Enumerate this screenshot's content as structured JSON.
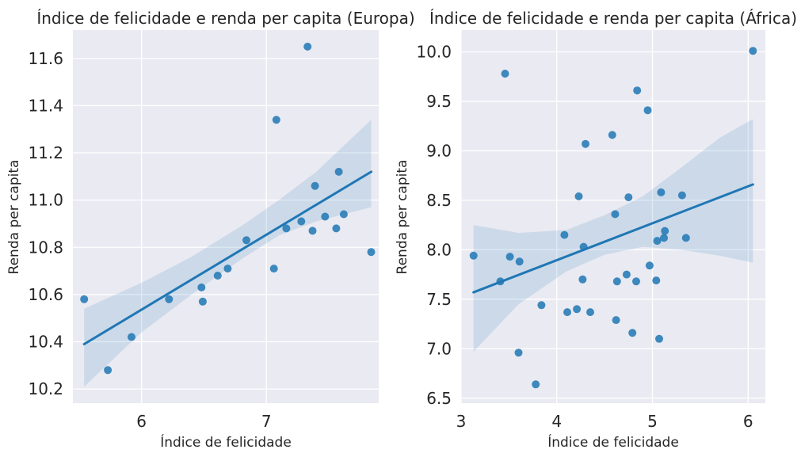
{
  "chart_data": [
    {
      "type": "scatter",
      "title": "Índice de felicidade e renda per capita (Europa)",
      "xlabel": "Índice de felicidade",
      "ylabel": "Renda per capita",
      "xlim": [
        5.45,
        7.9
      ],
      "ylim": [
        10.14,
        11.72
      ],
      "xticks": [
        6,
        7
      ],
      "yticks": [
        10.2,
        10.4,
        10.6,
        10.8,
        11.0,
        11.2,
        11.4,
        11.6
      ],
      "ytick_decimals": 1,
      "grid": true,
      "point_color": "#1f77b4",
      "line_color": "#1f77b4",
      "band_color": "#1f77b4",
      "points": [
        [
          5.54,
          10.58
        ],
        [
          5.73,
          10.28
        ],
        [
          5.92,
          10.42
        ],
        [
          6.22,
          10.58
        ],
        [
          6.48,
          10.63
        ],
        [
          6.49,
          10.57
        ],
        [
          6.61,
          10.68
        ],
        [
          6.69,
          10.71
        ],
        [
          6.84,
          10.83
        ],
        [
          7.06,
          10.71
        ],
        [
          7.08,
          11.34
        ],
        [
          7.16,
          10.88
        ],
        [
          7.28,
          10.91
        ],
        [
          7.33,
          11.65
        ],
        [
          7.37,
          10.87
        ],
        [
          7.39,
          11.06
        ],
        [
          7.47,
          10.93
        ],
        [
          7.56,
          10.88
        ],
        [
          7.58,
          11.12
        ],
        [
          7.62,
          10.94
        ],
        [
          7.84,
          10.78
        ]
      ],
      "regression": {
        "x": [
          5.54,
          7.84
        ],
        "y": [
          10.39,
          11.12
        ]
      },
      "ci_band": {
        "x": [
          5.54,
          6.0,
          6.4,
          6.8,
          7.1,
          7.4,
          7.84
        ],
        "lower": [
          10.21,
          10.44,
          10.6,
          10.75,
          10.85,
          10.91,
          10.97
        ],
        "upper": [
          10.54,
          10.65,
          10.76,
          10.89,
          11.0,
          11.12,
          11.34
        ]
      }
    },
    {
      "type": "scatter",
      "title": "Índice de felicidade e renda per capita (África)",
      "xlabel": "Índice de felicidade",
      "ylabel": "Renda per capita",
      "xlim": [
        3.0,
        6.18
      ],
      "ylim": [
        6.45,
        10.22
      ],
      "xticks": [
        3,
        4,
        5,
        6
      ],
      "yticks": [
        6.5,
        7.0,
        7.5,
        8.0,
        8.5,
        9.0,
        9.5,
        10.0
      ],
      "ytick_decimals": 1,
      "grid": true,
      "point_color": "#1f77b4",
      "line_color": "#1f77b4",
      "band_color": "#1f77b4",
      "points": [
        [
          3.13,
          7.94
        ],
        [
          3.41,
          7.68
        ],
        [
          3.46,
          9.78
        ],
        [
          3.51,
          7.93
        ],
        [
          3.6,
          6.96
        ],
        [
          3.61,
          7.88
        ],
        [
          3.78,
          6.64
        ],
        [
          3.84,
          7.44
        ],
        [
          4.08,
          8.15
        ],
        [
          4.11,
          7.37
        ],
        [
          4.21,
          7.4
        ],
        [
          4.23,
          8.54
        ],
        [
          4.27,
          7.7
        ],
        [
          4.28,
          8.03
        ],
        [
          4.3,
          9.07
        ],
        [
          4.35,
          7.37
        ],
        [
          4.58,
          9.16
        ],
        [
          4.61,
          8.36
        ],
        [
          4.62,
          7.29
        ],
        [
          4.63,
          7.68
        ],
        [
          4.73,
          7.75
        ],
        [
          4.75,
          8.53
        ],
        [
          4.79,
          7.16
        ],
        [
          4.83,
          7.68
        ],
        [
          4.84,
          9.61
        ],
        [
          4.95,
          9.41
        ],
        [
          4.97,
          7.84
        ],
        [
          5.04,
          7.69
        ],
        [
          5.05,
          8.09
        ],
        [
          5.07,
          7.1
        ],
        [
          5.09,
          8.58
        ],
        [
          5.12,
          8.12
        ],
        [
          5.13,
          8.19
        ],
        [
          5.31,
          8.55
        ],
        [
          5.35,
          8.12
        ],
        [
          6.05,
          10.01
        ]
      ],
      "regression": {
        "x": [
          3.13,
          6.05
        ],
        "y": [
          7.57,
          8.66
        ]
      },
      "ci_band": {
        "x": [
          3.13,
          3.6,
          4.1,
          4.5,
          4.9,
          5.3,
          5.7,
          6.05
        ],
        "lower": [
          6.97,
          7.45,
          7.78,
          7.95,
          8.03,
          8.0,
          7.94,
          7.87
        ],
        "upper": [
          8.25,
          8.17,
          8.2,
          8.35,
          8.54,
          8.83,
          9.13,
          9.32
        ]
      }
    }
  ]
}
